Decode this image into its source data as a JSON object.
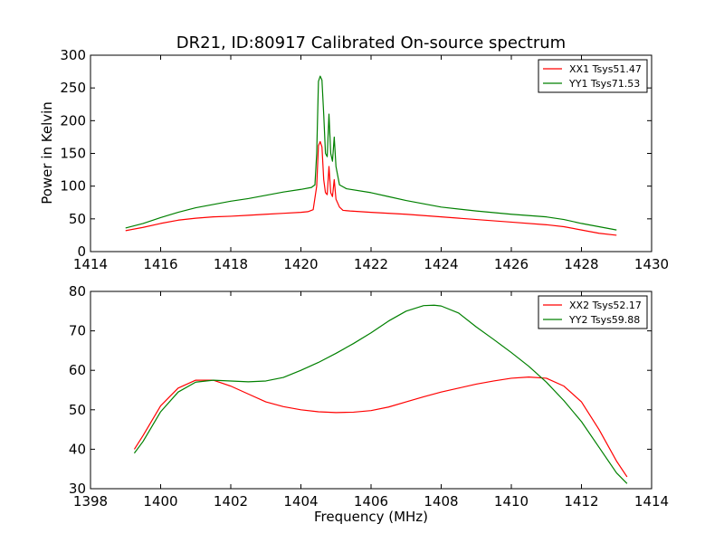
{
  "chart_data": [
    {
      "type": "line",
      "title": "DR21, ID:80917 Calibrated On-source spectrum",
      "xlabel": "",
      "ylabel": "Power in Kelvin",
      "xlim": [
        1414,
        1430
      ],
      "ylim": [
        0,
        300
      ],
      "xticks": [
        1414,
        1416,
        1418,
        1420,
        1422,
        1424,
        1426,
        1428,
        1430
      ],
      "yticks": [
        0,
        50,
        100,
        150,
        200,
        250,
        300
      ],
      "legend_position": "top-right",
      "grid": false,
      "series": [
        {
          "name": "XX1 Tsys51.47",
          "color": "#ff0000",
          "points": [
            [
              1415,
              32
            ],
            [
              1415.5,
              37
            ],
            [
              1416,
              43
            ],
            [
              1416.5,
              48
            ],
            [
              1417,
              51
            ],
            [
              1417.5,
              53
            ],
            [
              1418,
              54
            ],
            [
              1418.5,
              55.5
            ],
            [
              1419,
              57
            ],
            [
              1419.5,
              58.5
            ],
            [
              1420,
              60
            ],
            [
              1420.2,
              61
            ],
            [
              1420.35,
              64
            ],
            [
              1420.45,
              100
            ],
            [
              1420.5,
              162
            ],
            [
              1420.55,
              168
            ],
            [
              1420.6,
              160
            ],
            [
              1420.65,
              110
            ],
            [
              1420.7,
              90
            ],
            [
              1420.75,
              87
            ],
            [
              1420.8,
              130
            ],
            [
              1420.85,
              90
            ],
            [
              1420.9,
              84
            ],
            [
              1420.95,
              110
            ],
            [
              1421,
              80
            ],
            [
              1421.1,
              68
            ],
            [
              1421.2,
              63
            ],
            [
              1421.4,
              62
            ],
            [
              1422,
              60
            ],
            [
              1423,
              57
            ],
            [
              1424,
              53
            ],
            [
              1425,
              49
            ],
            [
              1426,
              45
            ],
            [
              1427,
              41
            ],
            [
              1427.5,
              38
            ],
            [
              1428,
              33
            ],
            [
              1428.5,
              28
            ],
            [
              1429,
              25
            ]
          ]
        },
        {
          "name": "YY1 Tsys71.53",
          "color": "#008000",
          "points": [
            [
              1415,
              36
            ],
            [
              1415.5,
              43
            ],
            [
              1416,
              52
            ],
            [
              1416.5,
              60
            ],
            [
              1417,
              67
            ],
            [
              1417.5,
              72
            ],
            [
              1418,
              77
            ],
            [
              1418.5,
              81
            ],
            [
              1419,
              86
            ],
            [
              1419.5,
              91
            ],
            [
              1420,
              95
            ],
            [
              1420.3,
              98
            ],
            [
              1420.4,
              102
            ],
            [
              1420.45,
              150
            ],
            [
              1420.5,
              260
            ],
            [
              1420.55,
              268
            ],
            [
              1420.6,
              262
            ],
            [
              1420.65,
              210
            ],
            [
              1420.7,
              150
            ],
            [
              1420.75,
              145
            ],
            [
              1420.8,
              210
            ],
            [
              1420.85,
              150
            ],
            [
              1420.9,
              138
            ],
            [
              1420.95,
              175
            ],
            [
              1421,
              130
            ],
            [
              1421.1,
              102
            ],
            [
              1421.3,
              96
            ],
            [
              1422,
              90
            ],
            [
              1422.5,
              84
            ],
            [
              1423,
              78
            ],
            [
              1424,
              68
            ],
            [
              1425,
              62
            ],
            [
              1426,
              57
            ],
            [
              1427,
              53
            ],
            [
              1427.5,
              49
            ],
            [
              1428,
              43
            ],
            [
              1428.5,
              38
            ],
            [
              1429,
              33
            ]
          ]
        }
      ]
    },
    {
      "type": "line",
      "title": "",
      "xlabel": "Frequency (MHz)",
      "ylabel": "",
      "xlim": [
        1398,
        1414
      ],
      "ylim": [
        30,
        80
      ],
      "xticks": [
        1398,
        1400,
        1402,
        1404,
        1406,
        1408,
        1410,
        1412,
        1414
      ],
      "yticks": [
        30,
        40,
        50,
        60,
        70,
        80
      ],
      "legend_position": "top-right",
      "grid": false,
      "series": [
        {
          "name": "XX2 Tsys52.17",
          "color": "#ff0000",
          "points": [
            [
              1399.25,
              40
            ],
            [
              1399.5,
              43.5
            ],
            [
              1400,
              51
            ],
            [
              1400.5,
              55.5
            ],
            [
              1401,
              57.5
            ],
            [
              1401.5,
              57.5
            ],
            [
              1402,
              56
            ],
            [
              1402.5,
              54
            ],
            [
              1403,
              52
            ],
            [
              1403.5,
              50.8
            ],
            [
              1404,
              50
            ],
            [
              1404.5,
              49.5
            ],
            [
              1405,
              49.3
            ],
            [
              1405.5,
              49.4
            ],
            [
              1406,
              49.8
            ],
            [
              1406.5,
              50.7
            ],
            [
              1407,
              52
            ],
            [
              1407.5,
              53.3
            ],
            [
              1408,
              54.5
            ],
            [
              1408.5,
              55.5
            ],
            [
              1409,
              56.5
            ],
            [
              1409.5,
              57.3
            ],
            [
              1410,
              58
            ],
            [
              1410.5,
              58.3
            ],
            [
              1411,
              58
            ],
            [
              1411.5,
              56
            ],
            [
              1412,
              52
            ],
            [
              1412.5,
              45
            ],
            [
              1413,
              37
            ],
            [
              1413.3,
              33
            ]
          ]
        },
        {
          "name": "YY2 Tsys59.88",
          "color": "#008000",
          "points": [
            [
              1399.25,
              39
            ],
            [
              1399.5,
              42
            ],
            [
              1400,
              49.5
            ],
            [
              1400.5,
              54.5
            ],
            [
              1401,
              57
            ],
            [
              1401.5,
              57.5
            ],
            [
              1402,
              57.3
            ],
            [
              1402.5,
              57.1
            ],
            [
              1403,
              57.3
            ],
            [
              1403.5,
              58.2
            ],
            [
              1404,
              60
            ],
            [
              1404.5,
              62
            ],
            [
              1405,
              64.3
            ],
            [
              1405.5,
              66.8
            ],
            [
              1406,
              69.5
            ],
            [
              1406.5,
              72.5
            ],
            [
              1407,
              75
            ],
            [
              1407.5,
              76.4
            ],
            [
              1407.8,
              76.5
            ],
            [
              1408,
              76.3
            ],
            [
              1408.5,
              74.5
            ],
            [
              1409,
              71
            ],
            [
              1409.5,
              67.8
            ],
            [
              1410,
              64.5
            ],
            [
              1410.5,
              61
            ],
            [
              1411,
              57
            ],
            [
              1411.5,
              52.3
            ],
            [
              1412,
              47
            ],
            [
              1412.5,
              40.5
            ],
            [
              1413,
              34
            ],
            [
              1413.3,
              31.3
            ]
          ]
        }
      ]
    }
  ]
}
